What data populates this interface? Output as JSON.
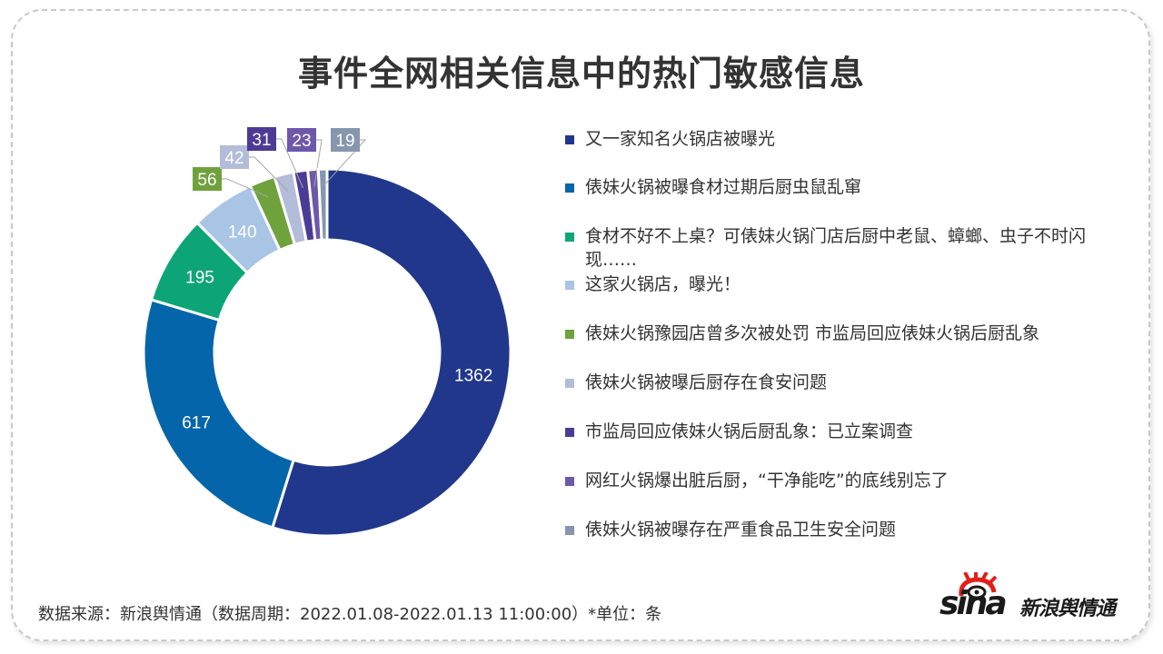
{
  "title": "事件全网相关信息中的热门敏感信息",
  "chart_data": {
    "type": "pie",
    "subtype": "donut",
    "title": "事件全网相关信息中的热门敏感信息",
    "categories": [
      "又一家知名火锅店被曝光",
      "俵妹火锅被曝食材过期后厨虫鼠乱窜",
      "食材不好不上桌？可俵妹火锅门店后厨中老鼠、蟑螂、虫子不时闪现……",
      "这家火锅店，曝光！",
      "俵妹火锅豫园店曾多次被处罚 市监局回应俵妹火锅后厨乱象",
      "俵妹火锅被曝后厨存在食安问题",
      "市监局回应俵妹火锅后厨乱象：已立案调查",
      "网红火锅爆出脏后厨，“干净能吃”的底线别忘了",
      "俵妹火锅被曝存在严重食品卫生安全问题"
    ],
    "values": [
      1362,
      617,
      195,
      140,
      56,
      42,
      31,
      23,
      19
    ],
    "colors": [
      "#20378c",
      "#0565aa",
      "#0da577",
      "#a8c5e6",
      "#6fa23c",
      "#b3bcd9",
      "#4c3b96",
      "#6d58aa",
      "#8596ae"
    ],
    "label_style": [
      "inside",
      "inside",
      "inside",
      "inside",
      "callout",
      "callout",
      "callout",
      "callout",
      "callout"
    ],
    "legend_position": "right",
    "unit": "条"
  },
  "footer": {
    "source": "数据来源：新浪舆情通（数据周期：2022.01.08-2022.01.13 11:00:00）*单位：条"
  },
  "logo": {
    "brand": "sina",
    "text": "新浪舆情通"
  }
}
